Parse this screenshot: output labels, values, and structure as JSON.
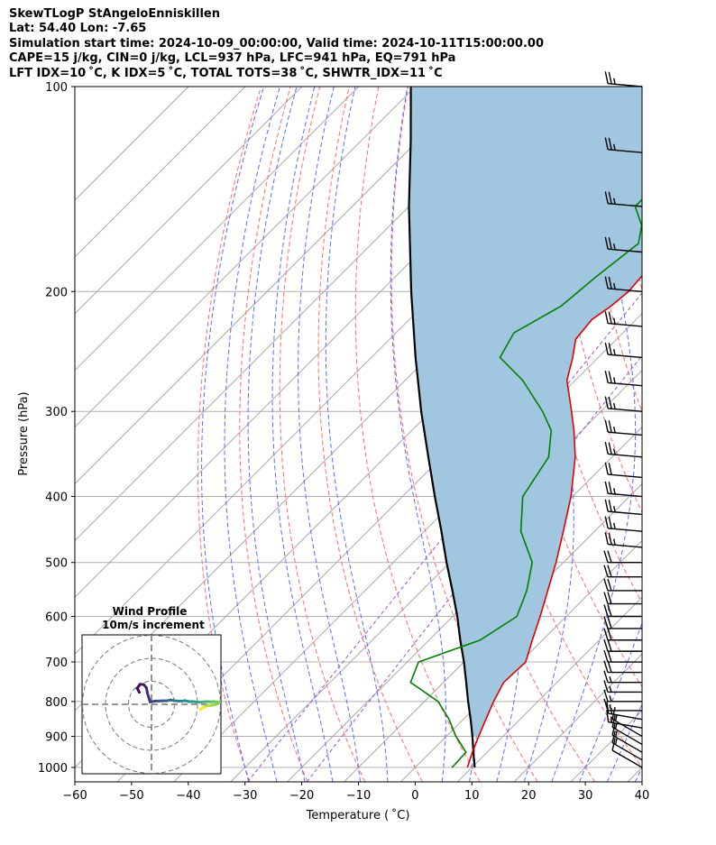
{
  "header": {
    "line1": "SkewTLogP StAngeloEnniskillen",
    "line2": "Lat: 54.40   Lon: -7.65",
    "line3": "Simulation start time: 2024-10-09_00:00:00, Valid time: 2024-10-11T15:00:00.00",
    "line4": "CAPE=15 j/kg, CIN=0 j/kg, LCL=937 hPa, LFC=941 hPa, EQ=791 hPa",
    "line5": "LFT IDX=10 ˚C, K IDX=5 ˚C, TOTAL TOTS=38 ˚C, SHWTR_IDX=11 ˚C"
  },
  "chart_data": {
    "type": "skewt",
    "xlabel": "Temperature ($^\\circ$C)",
    "xlabel_display": "Temperature ( ˚C)",
    "ylabel": "Pressure (hPa)",
    "xlim": [
      -60,
      40
    ],
    "ylim": [
      1050,
      100
    ],
    "x_ticks": [
      "−60",
      "−50",
      "−40",
      "−30",
      "−20",
      "−10",
      "0",
      "10",
      "20",
      "30",
      "40"
    ],
    "x_tick_values": [
      -60,
      -50,
      -40,
      -30,
      -20,
      -10,
      0,
      10,
      20,
      30,
      40
    ],
    "y_ticks": [
      "100",
      "200",
      "300",
      "400",
      "500",
      "600",
      "700",
      "800",
      "900",
      "1000"
    ],
    "y_tick_values": [
      100,
      200,
      300,
      400,
      500,
      600,
      700,
      800,
      900,
      1000
    ],
    "temperature": {
      "name": "Temperature",
      "color": "#e00000",
      "points": [
        [
          1000,
          9.2
        ],
        [
          950,
          7.4
        ],
        [
          900,
          5.7
        ],
        [
          850,
          4.0
        ],
        [
          800,
          2.2
        ],
        [
          750,
          0.6
        ],
        [
          700,
          0.9
        ],
        [
          650,
          -1.8
        ],
        [
          600,
          -4.6
        ],
        [
          550,
          -7.8
        ],
        [
          500,
          -11.3
        ],
        [
          450,
          -15.5
        ],
        [
          400,
          -20.3
        ],
        [
          350,
          -26.5
        ],
        [
          320,
          -31.4
        ],
        [
          300,
          -35.2
        ],
        [
          270,
          -41.5
        ],
        [
          250,
          -44.5
        ],
        [
          235,
          -47.2
        ],
        [
          220,
          -47.8
        ],
        [
          210,
          -46.8
        ],
        [
          200,
          -46.3
        ],
        [
          180,
          -47.0
        ],
        [
          160,
          -49.3
        ],
        [
          140,
          -51.6
        ],
        [
          120,
          -56.1
        ],
        [
          100,
          -60.7
        ]
      ]
    },
    "dewpoint": {
      "name": "Dewpoint",
      "color": "#008000",
      "points": [
        [
          1000,
          6.5
        ],
        [
          950,
          6.3
        ],
        [
          900,
          1.7
        ],
        [
          850,
          -2.5
        ],
        [
          800,
          -7.6
        ],
        [
          750,
          -15.8
        ],
        [
          700,
          -18.0
        ],
        [
          650,
          -11.0
        ],
        [
          600,
          -8.7
        ],
        [
          550,
          -11.5
        ],
        [
          500,
          -15.5
        ],
        [
          450,
          -23.0
        ],
        [
          400,
          -28.8
        ],
        [
          350,
          -31.2
        ],
        [
          320,
          -35.4
        ],
        [
          300,
          -40.3
        ],
        [
          270,
          -49.3
        ],
        [
          250,
          -57.3
        ],
        [
          230,
          -59.2
        ],
        [
          210,
          -55.6
        ],
        [
          190,
          -54.6
        ],
        [
          170,
          -53.0
        ],
        [
          160,
          -55.6
        ],
        [
          150,
          -60.1
        ],
        [
          130,
          -60.2
        ],
        [
          115,
          -60.8
        ],
        [
          100,
          -64.7
        ]
      ]
    },
    "parcel": {
      "name": "Parcel",
      "color": "#000000",
      "points": [
        [
          1000,
          10.5
        ],
        [
          950,
          7.6
        ],
        [
          900,
          4.6
        ],
        [
          850,
          1.3
        ],
        [
          800,
          -2.3
        ],
        [
          750,
          -6.0
        ],
        [
          700,
          -10.0
        ],
        [
          650,
          -14.5
        ],
        [
          600,
          -19.2
        ],
        [
          550,
          -24.6
        ],
        [
          500,
          -30.6
        ],
        [
          450,
          -37.0
        ],
        [
          400,
          -44.3
        ],
        [
          350,
          -52.4
        ],
        [
          300,
          -61.7
        ],
        [
          250,
          -72.2
        ],
        [
          200,
          -84.6
        ],
        [
          150,
          -100.0
        ],
        [
          120,
          -111.3
        ],
        [
          100,
          -120.8
        ]
      ]
    },
    "cape_fill": {
      "color": "#a1c6df"
    },
    "winds": {
      "pressures": [
        100,
        125,
        150,
        175,
        200,
        225,
        250,
        275,
        300,
        325,
        350,
        375,
        400,
        425,
        450,
        475,
        500,
        525,
        550,
        575,
        600,
        625,
        650,
        675,
        700,
        725,
        750,
        775,
        800,
        825,
        850,
        875,
        900,
        925,
        950,
        975,
        1000
      ],
      "speed_kt": [
        25,
        25,
        25,
        25,
        25,
        25,
        25,
        25,
        25,
        25,
        25,
        20,
        25,
        25,
        25,
        25,
        20,
        20,
        20,
        20,
        20,
        20,
        20,
        20,
        20,
        20,
        15,
        15,
        15,
        15,
        15,
        15,
        15,
        15,
        15,
        15,
        10
      ],
      "direction_deg": [
        275,
        275,
        275,
        275,
        275,
        275,
        275,
        275,
        275,
        275,
        275,
        275,
        275,
        275,
        275,
        275,
        270,
        270,
        270,
        270,
        270,
        270,
        270,
        270,
        270,
        270,
        270,
        270,
        270,
        270,
        280,
        280,
        300,
        300,
        300,
        300,
        300
      ]
    },
    "hodograph": {
      "title_line1": "Wind Profile",
      "title_line2": "10m/s increment",
      "rings": [
        10,
        20,
        30
      ],
      "points": [
        [
          -5.3,
          5.2
        ],
        [
          -6.2,
          7.0
        ],
        [
          -5.0,
          8.7
        ],
        [
          -3.4,
          8.6
        ],
        [
          -2.2,
          7.2
        ],
        [
          -1.8,
          5.0
        ],
        [
          -0.6,
          1.0
        ],
        [
          1.6,
          1.4
        ],
        [
          3.2,
          1.4
        ],
        [
          5.0,
          1.5
        ],
        [
          6.6,
          1.5
        ],
        [
          8.2,
          1.9
        ],
        [
          9.7,
          1.6
        ],
        [
          11.6,
          1.4
        ],
        [
          13.3,
          1.4
        ],
        [
          14.6,
          1.6
        ],
        [
          16.3,
          1.2
        ],
        [
          18.1,
          1.2
        ],
        [
          19.8,
          1.0
        ],
        [
          20.9,
          0.9
        ],
        [
          21.9,
          1.0
        ],
        [
          24.1,
          1.2
        ],
        [
          25.6,
          1.1
        ],
        [
          27.2,
          1.2
        ],
        [
          28.4,
          1.0
        ],
        [
          29.8,
          0.9
        ],
        [
          27.8,
          -0.1
        ],
        [
          25.9,
          -0.5
        ],
        [
          24.1,
          -0.6
        ],
        [
          23.1,
          -1.0
        ],
        [
          22.3,
          -1.5
        ],
        [
          21.2,
          -2.2
        ],
        [
          22.6,
          -1.2
        ]
      ]
    }
  }
}
